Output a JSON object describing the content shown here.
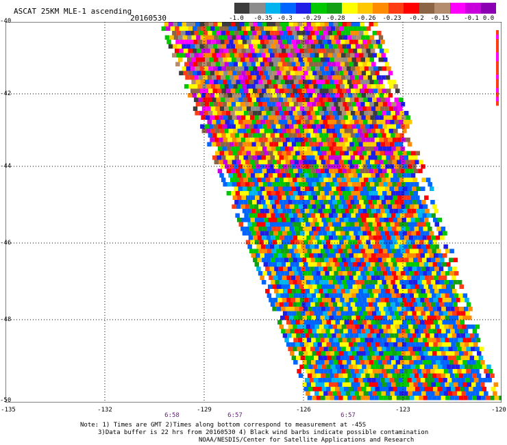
{
  "title": "ASCAT 25KM MLE-1 ascending",
  "date": "20160530",
  "colorbar": {
    "colors": [
      "#3c3c3c",
      "#8c8c8c",
      "#00b4f0",
      "#0064ff",
      "#1e1ee6",
      "#00c800",
      "#14a014",
      "#ffff00",
      "#ffc800",
      "#ff8c00",
      "#ff3c14",
      "#ff0000",
      "#8c6446",
      "#b48c6e",
      "#ff00ff",
      "#c800dc",
      "#8c00b4"
    ],
    "labels": [
      "-1.0",
      "-0.35",
      "-0.3",
      "-0.29",
      "-0.28",
      "-0.26",
      "-0.23",
      "-0.2",
      "-0.15",
      "-0.1",
      "0.0"
    ]
  },
  "axes": {
    "lat_labels": [
      "-40",
      "-42",
      "-44",
      "-46",
      "-48",
      "-50"
    ],
    "lon_labels": [
      "-135",
      "-132",
      "-129",
      "-126",
      "-123",
      "-120"
    ],
    "times": [
      "6:58",
      "6:57",
      "6:57"
    ]
  },
  "notes": [
    "Note: 1) Times are GMT 2)Times along bottom correspond to measurement at -45S",
    "3)Data buffer is 22 hrs from 20160530 4) Black wind barbs indicate possible contamination",
    "NOAA/NESDIS/Center for Satellite Applications and Research"
  ]
}
